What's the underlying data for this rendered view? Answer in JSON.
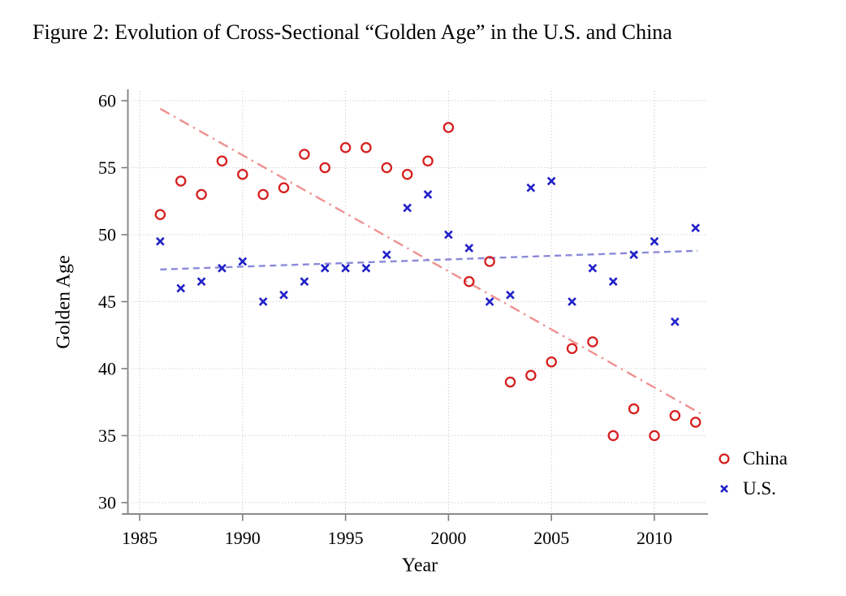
{
  "figure_title": "Figure 2: Evolution of Cross-Sectional “Golden Age” in the U.S. and China",
  "chart_data": {
    "type": "scatter",
    "title": "Figure 2: Evolution of Cross-Sectional “Golden Age” in the U.S. and China",
    "xlabel": "Year",
    "ylabel": "Golden Age",
    "x_ticks": [
      1985,
      1990,
      1995,
      2000,
      2005,
      2010
    ],
    "y_ticks": [
      30,
      35,
      40,
      45,
      50,
      55,
      60
    ],
    "xlim": [
      1984.4,
      2012.6
    ],
    "ylim": [
      29.2,
      61.5
    ],
    "grid": "dotted",
    "legend_position": "bottom-right",
    "legend_entries": [
      "China",
      "U.S."
    ],
    "years": [
      1986,
      1987,
      1988,
      1989,
      1990,
      1991,
      1992,
      1993,
      1994,
      1995,
      1996,
      1997,
      1998,
      1999,
      2000,
      2001,
      2002,
      2003,
      2004,
      2005,
      2006,
      2007,
      2008,
      2009,
      2010,
      2011,
      2012
    ],
    "series": [
      {
        "name": "China",
        "marker": "circle",
        "color": "#d61f1f",
        "values": [
          51.5,
          54,
          53,
          55.5,
          54.5,
          53,
          53.5,
          56,
          55,
          56.5,
          56.5,
          55,
          54.5,
          55.5,
          58,
          46.5,
          48,
          39,
          39.5,
          40.5,
          41.5,
          42,
          35,
          37,
          35,
          36.5,
          36
        ]
      },
      {
        "name": "U.S.",
        "marker": "x",
        "color": "#2121c8",
        "values": [
          49.5,
          46,
          46.5,
          47.5,
          48,
          45,
          45.5,
          46.5,
          47.5,
          47.5,
          47.5,
          48.5,
          52,
          53,
          50,
          49,
          45,
          45.5,
          53.5,
          54,
          45,
          47.5,
          46.5,
          48.5,
          49.5,
          43.5,
          50.5
        ]
      }
    ],
    "trend_lines": [
      {
        "series": "China",
        "style": "dash-dot",
        "color": "#ef9191",
        "x_start": 1986,
        "y_start": 59.4,
        "x_end": 2012.3,
        "y_end": 36.6
      },
      {
        "series": "U.S.",
        "style": "dashed",
        "color": "#8a8ad9",
        "x_start": 1986,
        "y_start": 47.4,
        "x_end": 2012.1,
        "y_end": 48.8
      }
    ]
  }
}
